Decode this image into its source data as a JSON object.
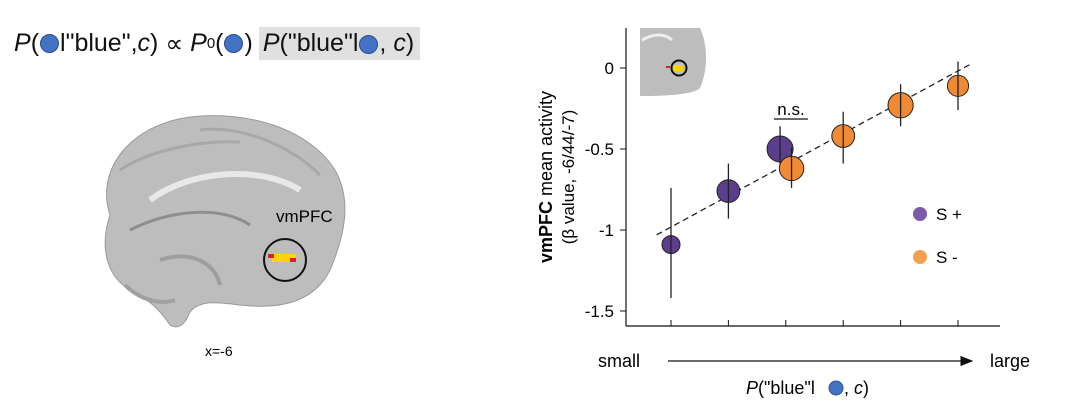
{
  "formula": {
    "lhs_p": "P",
    "lhs_text": "l\"blue\", ",
    "lhs_c": "c",
    "close": ")",
    "propto": "∝",
    "prior_p": "P",
    "prior_sub": "0",
    "lik_p": "P",
    "lik_text": "(\"blue\"l",
    "lik_c": "c",
    "dot_color": "#4472c4"
  },
  "brain": {
    "region_label": "vmPFC",
    "slice_label": "x=-6"
  },
  "chart_data": {
    "type": "scatter",
    "ylabel_bold": "vmPFC",
    "ylabel_rest": " mean activity",
    "ylabel_sub": "(β value, -6/44/-7)",
    "xlabel_p": "P",
    "xlabel_text": "(\"blue\"l",
    "xlabel_c": "c",
    "x_small": "small",
    "x_large": "large",
    "ylim": [
      -1.6,
      0.25
    ],
    "yticks": [
      "0",
      "-0.5",
      "-1",
      "-1.5"
    ],
    "ytick_values": [
      0,
      -0.5,
      -1,
      -1.5
    ],
    "x_positions": 6,
    "annotation": "n.s.",
    "legend": [
      {
        "label": "S +",
        "color": "#5b3f8c"
      },
      {
        "label": "S -",
        "color": "#f08a35"
      }
    ],
    "series": [
      {
        "name": "S +",
        "color": "#5b3f8c",
        "points": [
          {
            "x": 1,
            "y": -1.09,
            "lo": -1.42,
            "hi": -0.74,
            "size": 0.5
          },
          {
            "x": 2,
            "y": -0.76,
            "lo": -0.93,
            "hi": -0.59,
            "size": 0.8
          },
          {
            "x": 2.9,
            "y": -0.5,
            "lo": -0.62,
            "hi": -0.36,
            "size": 1.0
          }
        ]
      },
      {
        "name": "S -",
        "color": "#f08a35",
        "points": [
          {
            "x": 3.1,
            "y": -0.62,
            "lo": -0.74,
            "hi": -0.49,
            "size": 0.9
          },
          {
            "x": 4,
            "y": -0.42,
            "lo": -0.59,
            "hi": -0.27,
            "size": 0.8
          },
          {
            "x": 5,
            "y": -0.23,
            "lo": -0.36,
            "hi": -0.1,
            "size": 0.95
          },
          {
            "x": 6,
            "y": -0.11,
            "lo": -0.26,
            "hi": 0.04,
            "size": 0.7
          }
        ]
      }
    ],
    "fit_line": {
      "x": [
        0.75,
        6.2
      ],
      "y": [
        -1.03,
        0.02
      ]
    }
  }
}
